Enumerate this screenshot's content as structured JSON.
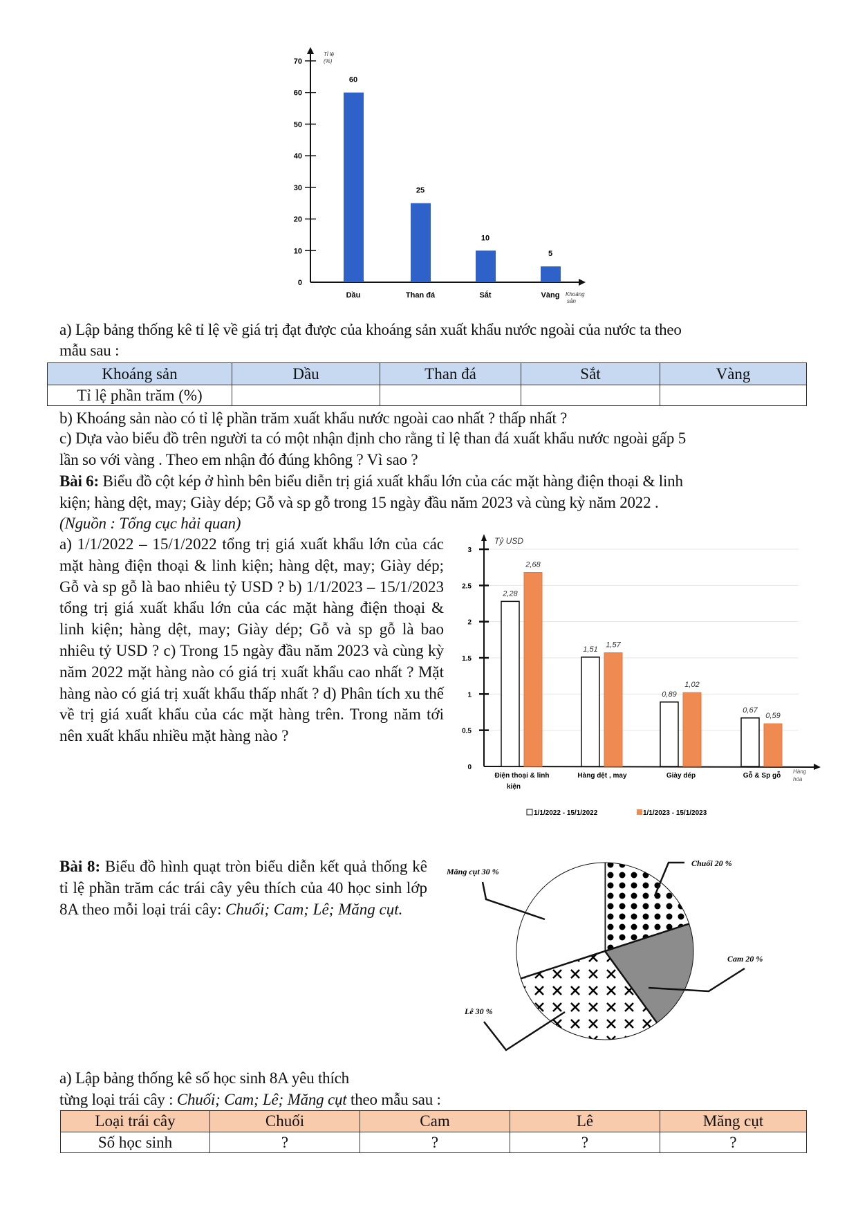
{
  "exercise5": {
    "q_a_line1": "a) Lập bảng thống kê tỉ lệ về giá trị đạt được của khoáng sản xuất khẩu nước ngoài của nước ta theo",
    "q_a_line2": "mẫu sau :",
    "table": {
      "header": [
        "Khoáng sản",
        "Dầu",
        "Than đá",
        "Sắt",
        "Vàng"
      ],
      "row_label": "Tỉ lệ phần trăm (%)",
      "header_bg": "#c6d9f1"
    },
    "q_b": "b) Khoáng sản nào có tỉ lệ phần trăm xuất khẩu nước ngoài cao nhất ? thấp nhất ?",
    "q_c_line1": "c) Dựa vào biểu đồ trên người ta có một nhận định cho rằng tỉ lệ than đá xuất khẩu nước ngoài gấp 5",
    "q_c_line2": "lần so với vàng . Theo em nhận đó đúng không ? Vì sao ?"
  },
  "exercise6": {
    "title": "Bài 6:",
    "intro_line1": " Biểu đồ cột kép ở hình bên biểu diễn trị giá xuất khẩu lớn của các mặt hàng điện thoại & linh",
    "intro_line2": "kiện; hàng dệt, may; Giày dép; Gỗ và sp gỗ trong 15 ngày đầu năm 2023 và cùng kỳ năm 2022 .",
    "source": "(Nguồn : Tổng cục hải quan)",
    "questions": "a) 1/1/2022 – 15/1/2022 tổng trị giá xuất khẩu lớn của các mặt hàng điện thoại & linh kiện; hàng dệt, may; Giày dép; Gỗ và sp gỗ là bao nhiêu tỷ USD ? b) 1/1/2023 – 15/1/2023 tổng trị giá xuất khẩu lớn của các mặt hàng điện thoại & linh kiện; hàng dệt, may; Giày dép; Gỗ và sp gỗ là bao nhiêu tỷ USD ? c) Trong 15 ngày đầu năm 2023 và cùng kỳ năm 2022 mặt hàng nào có giá trị xuất khẩu cao nhất ? Mặt hàng nào có giá trị xuất khẩu thấp nhất ? d) Phân tích xu thế về trị giá xuất khẩu của các mặt hàng trên. Trong năm tới nên xuất khẩu nhiều mặt hàng nào ?"
  },
  "exercise8": {
    "title": "Bài 8:",
    "intro": " Biểu đồ hình quạt tròn biểu diễn kết quả thống kê tỉ lệ phần trăm các trái cây yêu thích của 40 học sinh lớp 8A theo mỗi loại trái cây: ",
    "intro_italic": "Chuối; Cam; Lê; Măng cụt.",
    "q_a_line1": "a) Lập bảng thống kê số học sinh 8A yêu thích",
    "q_a_line2_start": "từng loại trái cây : ",
    "q_a_line2_italic": "Chuối; Cam; Lê; Măng cụt",
    "q_a_line2_end": " theo mẫu sau :",
    "table": {
      "header": [
        "Loại trái cây",
        "Chuối",
        "Cam",
        "Lê",
        "Măng cụt"
      ],
      "row_label": "Số học sinh",
      "values": [
        "?",
        "?",
        "?",
        "?"
      ],
      "header_bg": "#f8cbad"
    }
  },
  "chart_data": [
    {
      "type": "bar",
      "categories": [
        "Dầu",
        "Than đá",
        "Sắt",
        "Vàng"
      ],
      "values": [
        60,
        25,
        10,
        5
      ],
      "data_labels": [
        "60",
        "25",
        "10",
        "5"
      ],
      "ylabel": "Tỉ lệ (%)",
      "xlabel": "Khoáng sản",
      "ylim": [
        0,
        70
      ],
      "yticks": [
        "0",
        "10",
        "20",
        "30",
        "40",
        "50",
        "60",
        "70"
      ],
      "grid": false,
      "color": "#2f62c8"
    },
    {
      "type": "bar",
      "categories": [
        "Điện thoại & linh kiện",
        "Hàng dệt , may",
        "Giày dép",
        "Gỗ & Sp gỗ"
      ],
      "series": [
        {
          "name": "1/1/2022 - 15/1/2022",
          "values": [
            2.28,
            1.51,
            0.89,
            0.67
          ],
          "labels": [
            "2,28",
            "1,51",
            "0,89",
            "0,67"
          ],
          "color": "#ffffff"
        },
        {
          "name": "1/1/2023 - 15/1/2023",
          "values": [
            2.68,
            1.57,
            1.02,
            0.59
          ],
          "labels": [
            "2,68",
            "1,57",
            "1,02",
            "0,59"
          ],
          "color": "#ee8a52"
        }
      ],
      "ylabel": "Tỷ USD",
      "xlabel": "Hàng hóa",
      "ylim": [
        0,
        3
      ],
      "yticks": [
        "0",
        "0.5",
        "1",
        "1.5",
        "2",
        "2.5",
        "3"
      ],
      "grid": true,
      "legend": "bottom"
    },
    {
      "type": "pie",
      "slices": [
        {
          "label": "Chuối 20 %",
          "value": 20,
          "pattern": "dots"
        },
        {
          "label": "Cam 20 %",
          "value": 20,
          "pattern": "gray",
          "color": "#8c8c8c"
        },
        {
          "label": "Lê 30 %",
          "value": 30,
          "pattern": "crosses"
        },
        {
          "label": "Măng cụt 30 %",
          "value": 30,
          "pattern": "white"
        }
      ]
    }
  ]
}
